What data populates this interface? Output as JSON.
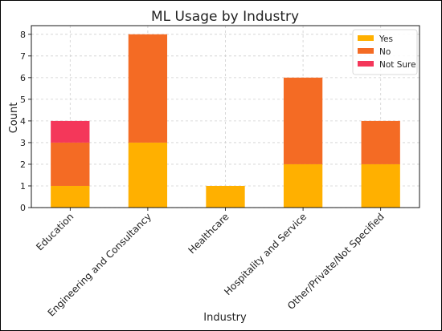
{
  "chart_data": {
    "type": "bar",
    "stacked": true,
    "title": "ML Usage by Industry",
    "xlabel": "Industry",
    "ylabel": "Count",
    "categories": [
      "Education",
      "Engineering and Consultancy",
      "Healthcare",
      "Hospitality and Service",
      "Other/Private/Not Specified"
    ],
    "series": [
      {
        "name": "Yes",
        "color": "#FFB000",
        "values": [
          1,
          3,
          1,
          2,
          2
        ]
      },
      {
        "name": "No",
        "color": "#F46B24",
        "values": [
          2,
          5,
          0,
          4,
          2
        ]
      },
      {
        "name": "Not Sure",
        "color": "#F4375A",
        "values": [
          1,
          0,
          0,
          0,
          0
        ]
      }
    ],
    "ylim": [
      0,
      8.4
    ],
    "yticks": [
      0,
      1,
      2,
      3,
      4,
      5,
      6,
      7,
      8
    ],
    "grid": true,
    "legend_position": "top-right"
  }
}
